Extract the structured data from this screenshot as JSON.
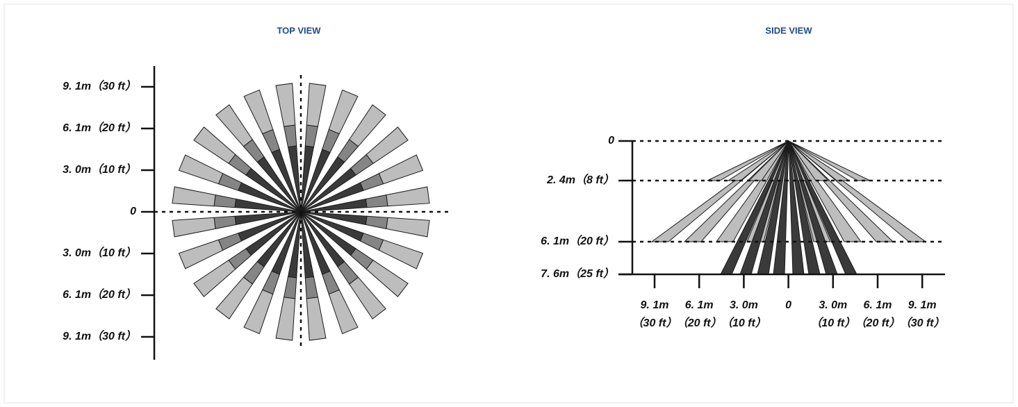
{
  "top_view": {
    "title": "TOP VIEW",
    "axis_labels": [
      "9. 1m（30 ft）",
      "6. 1m（20 ft）",
      "3. 0m（10 ft）",
      "0",
      "3. 0m（10 ft）",
      "6. 1m（20 ft）",
      "9. 1m（30 ft）"
    ]
  },
  "side_view": {
    "title": "SIDE VIEW",
    "y_labels": [
      "0",
      "2. 4m（8 ft）",
      "6. 1m（20 ft）",
      "7. 6m（25 ft）"
    ],
    "x_labels": [
      {
        "top": "9. 1m",
        "bottom": "（30 ft）"
      },
      {
        "top": "6. 1m",
        "bottom": "（20 ft）"
      },
      {
        "top": "3. 0m",
        "bottom": "（10 ft）"
      },
      {
        "top": "0"
      },
      {
        "top": "3. 0m",
        "bottom": "（10 ft）"
      },
      {
        "top": "6. 1m",
        "bottom": "（20 ft）"
      },
      {
        "top": "9. 1m",
        "bottom": "（30 ft）"
      }
    ]
  }
}
